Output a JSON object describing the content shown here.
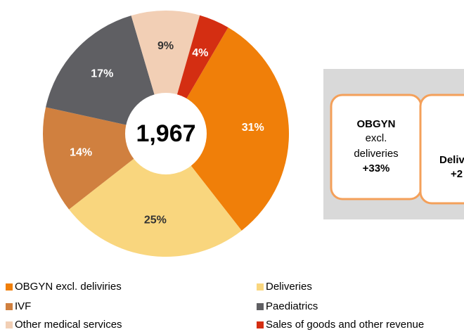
{
  "chart_data": {
    "type": "pie",
    "center_label": "1,967",
    "categories": [
      "OBGYN excl. deliviries",
      "Deliveries",
      "IVF",
      "Paediatrics",
      "Other medical services",
      "Sales of goods and other revenue"
    ],
    "values": [
      31,
      25,
      14,
      17,
      9,
      4
    ],
    "value_labels": [
      "31%",
      "25%",
      "14%",
      "17%",
      "9%",
      "4%"
    ],
    "colors": [
      "#f07f09",
      "#f9d67e",
      "#d0803f",
      "#5f5f63",
      "#f2cfb5",
      "#d42e12"
    ]
  },
  "panel": {
    "boxes": [
      {
        "lines": [
          "OBGYN",
          "excl.",
          "deliveries",
          "+33%"
        ]
      },
      {
        "lines": [
          "Deliv",
          "+2"
        ]
      }
    ]
  }
}
